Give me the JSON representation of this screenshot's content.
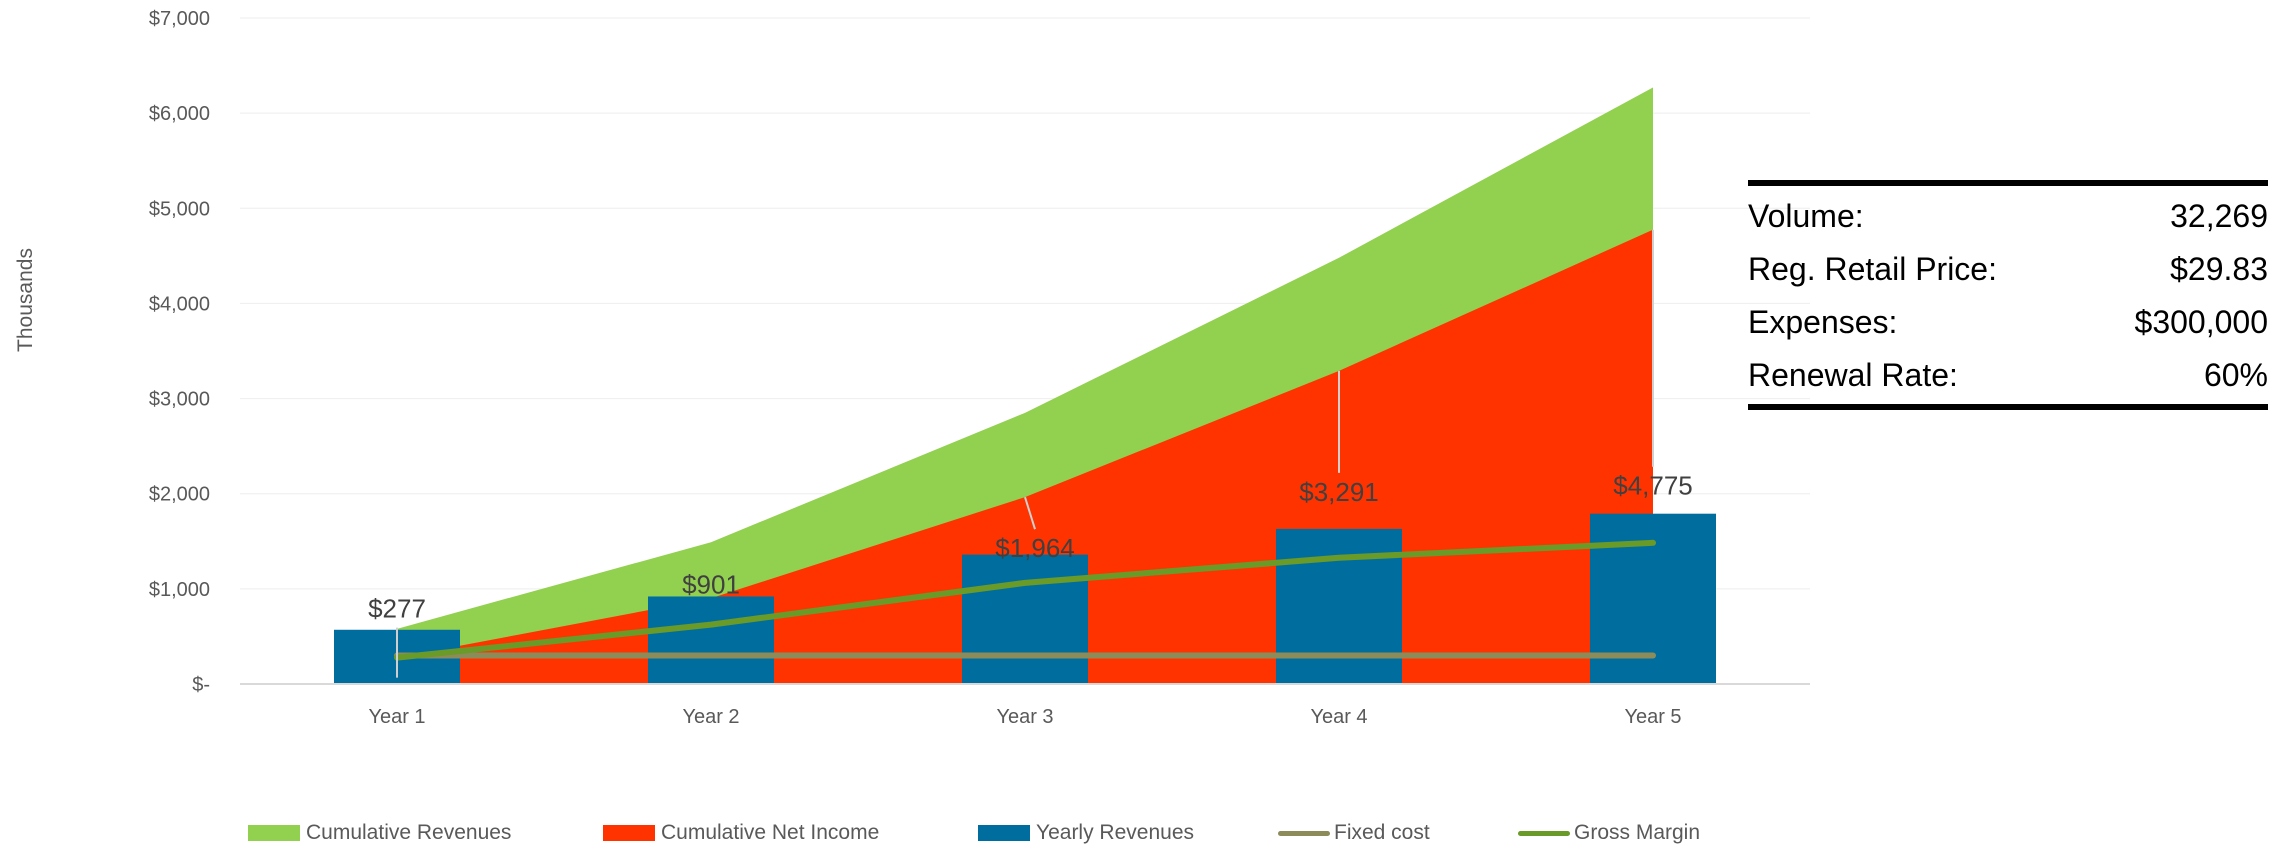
{
  "chart_data": {
    "type": "bar+area+line",
    "categories": [
      "Year 1",
      "Year 2",
      "Year 3",
      "Year 4",
      "Year 5"
    ],
    "ylabel": "Thousands",
    "ylim": [
      0,
      7000
    ],
    "y_ticks": [
      {
        "value": 0,
        "label": "$-"
      },
      {
        "value": 1000,
        "label": "$1,000"
      },
      {
        "value": 2000,
        "label": "$2,000"
      },
      {
        "value": 3000,
        "label": "$3,000"
      },
      {
        "value": 4000,
        "label": "$4,000"
      },
      {
        "value": 5000,
        "label": "$5,000"
      },
      {
        "value": 6000,
        "label": "$6,000"
      },
      {
        "value": 7000,
        "label": "$7,000"
      }
    ],
    "grid": true,
    "legend_position": "bottom",
    "series": [
      {
        "name": "Cumulative Revenues",
        "kind": "area",
        "color": "#92d050",
        "values": [
          580,
          1490,
          2850,
          4480,
          6270
        ]
      },
      {
        "name": "Cumulative Net Income",
        "kind": "area",
        "color": "#ff3300",
        "values": [
          277,
          901,
          1964,
          3291,
          4775
        ],
        "data_labels": [
          "$277",
          "$901",
          "$1,964",
          "$3,291",
          "$4,775"
        ]
      },
      {
        "name": "Yearly Revenues",
        "kind": "bar",
        "color": "#006d9f",
        "values": [
          570,
          920,
          1360,
          1630,
          1790
        ]
      },
      {
        "name": "Fixed cost",
        "kind": "line",
        "color": "#8c8c5a",
        "values": [
          300,
          300,
          300,
          300,
          300
        ]
      },
      {
        "name": "Gross Margin",
        "kind": "line",
        "color": "#6a9a28",
        "values": [
          277,
          624,
          1063,
          1327,
          1484
        ]
      }
    ]
  },
  "info": {
    "rows": [
      {
        "label": "Volume:",
        "value": "32,269"
      },
      {
        "label": "Reg. Retail Price:",
        "value": "$29.83"
      },
      {
        "label": "Expenses:",
        "value": "$300,000"
      },
      {
        "label": "Renewal Rate:",
        "value": "60%"
      }
    ]
  }
}
